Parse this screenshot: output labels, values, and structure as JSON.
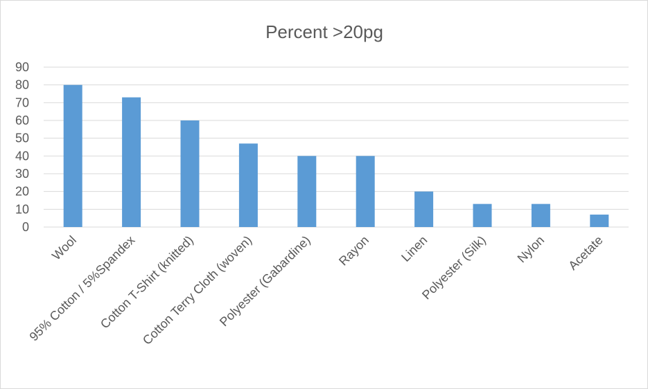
{
  "chart_data": {
    "type": "bar",
    "title": "Percent >20pg",
    "categories": [
      "Wool",
      "95% Cotton / 5%Spandex",
      "Cotton T-Shirt (knitted)",
      "Cotton Terry Cloth (woven)",
      "Polyester (Gabardine)",
      "Rayon",
      "Linen",
      "Polyester (Silk)",
      "Nylon",
      "Acetate"
    ],
    "values": [
      80,
      73,
      60,
      47,
      40,
      40,
      20,
      13,
      13,
      7
    ],
    "xlabel": "",
    "ylabel": "",
    "ylim": [
      0,
      90
    ],
    "yticks": [
      0,
      10,
      20,
      30,
      40,
      50,
      60,
      70,
      80,
      90
    ],
    "grid": true,
    "legend": "none",
    "colors": {
      "bar": "#5b9bd5",
      "grid": "#d9d9d9",
      "text": "#595959"
    }
  }
}
